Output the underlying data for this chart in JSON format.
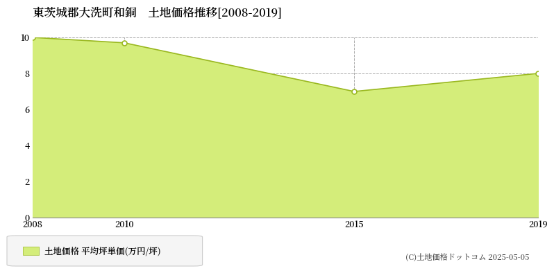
{
  "title": "東茨城郡大洗町和銅　土地価格推移[2008-2019]",
  "x_values": [
    2008,
    2010,
    2015,
    2019
  ],
  "y_values": [
    10.0,
    9.7,
    7.0,
    8.0
  ],
  "line_color": "#9ab820",
  "fill_color": "#d4ed7a",
  "fill_alpha": 1.0,
  "marker_facecolor": "#ffffff",
  "marker_edgecolor": "#9ab820",
  "marker_size": 5,
  "ylim": [
    0,
    10
  ],
  "xlim": [
    2008,
    2019
  ],
  "yticks": [
    0,
    2,
    4,
    6,
    8,
    10
  ],
  "xticks": [
    2008,
    2010,
    2015,
    2019
  ],
  "grid_color": "#aaaaaa",
  "grid_style": "--",
  "legend_label": "土地価格 平均坪単価(万円/坪)",
  "copyright": "(C)土地価格ドットコム 2025-05-05",
  "bg_color": "#ffffff",
  "plot_bg_color": "#ffffff",
  "title_fontsize": 12,
  "tick_fontsize": 9,
  "legend_fontsize": 9,
  "copyright_fontsize": 8
}
